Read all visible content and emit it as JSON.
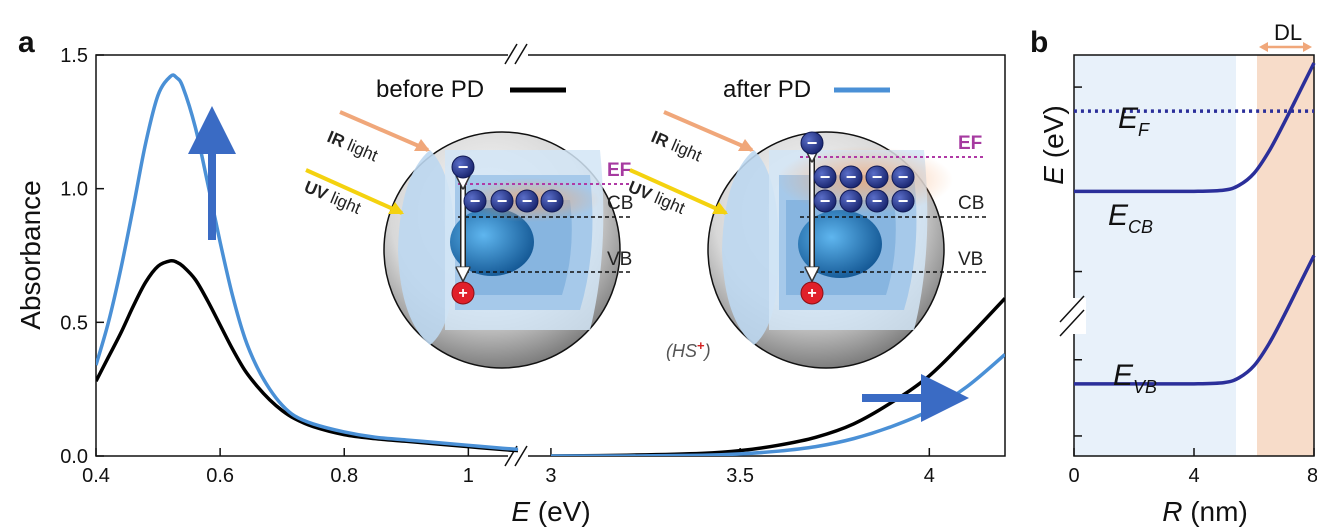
{
  "chart_data": [
    {
      "panel": "a",
      "type": "line",
      "xlabel": "E (eV)",
      "ylabel": "Absorbance",
      "x_segments": [
        [
          0.4,
          1.08
        ],
        [
          3.0,
          4.2
        ]
      ],
      "x_break": true,
      "xticks": [
        0.4,
        0.6,
        0.8,
        1,
        3,
        3.5,
        4
      ],
      "xtick_labels": [
        "0.4",
        "0.6",
        "0.8",
        "1",
        "3",
        "3.5",
        "4"
      ],
      "ylim": [
        0,
        1.5
      ],
      "yticks": [
        0.0,
        0.5,
        1.0,
        1.5
      ],
      "ytick_labels": [
        "0.0",
        "0.5",
        "1.0",
        "1.5"
      ],
      "series": [
        {
          "name": "before PD",
          "color": "#000000",
          "ir": {
            "x": [
              0.4,
              0.42,
              0.44,
              0.46,
              0.48,
              0.5,
              0.52,
              0.53,
              0.54,
              0.56,
              0.58,
              0.6,
              0.62,
              0.64,
              0.66,
              0.68,
              0.7,
              0.72,
              0.75,
              0.8,
              0.85,
              0.9,
              0.95,
              1.0,
              1.05,
              1.08
            ],
            "y": [
              0.28,
              0.37,
              0.46,
              0.56,
              0.65,
              0.71,
              0.73,
              0.725,
              0.71,
              0.66,
              0.58,
              0.49,
              0.4,
              0.32,
              0.26,
              0.21,
              0.17,
              0.14,
              0.11,
              0.08,
              0.065,
              0.055,
              0.045,
              0.035,
              0.025,
              0.02
            ]
          },
          "uv": {
            "x": [
              3.0,
              3.2,
              3.4,
              3.5,
              3.6,
              3.7,
              3.8,
              3.9,
              4.0,
              4.1,
              4.2
            ],
            "y": [
              0.0,
              0.003,
              0.01,
              0.02,
              0.04,
              0.07,
              0.12,
              0.2,
              0.3,
              0.44,
              0.59
            ]
          }
        },
        {
          "name": "after PD",
          "color": "#4a90d6",
          "ir": {
            "x": [
              0.4,
              0.42,
              0.44,
              0.46,
              0.48,
              0.5,
              0.52,
              0.53,
              0.54,
              0.56,
              0.58,
              0.6,
              0.62,
              0.64,
              0.66,
              0.68,
              0.7,
              0.72,
              0.75,
              0.8,
              0.85,
              0.9,
              0.95,
              1.0,
              1.05,
              1.08
            ],
            "y": [
              0.34,
              0.5,
              0.7,
              0.93,
              1.17,
              1.35,
              1.42,
              1.415,
              1.38,
              1.23,
              1.02,
              0.8,
              0.6,
              0.44,
              0.33,
              0.25,
              0.19,
              0.15,
              0.12,
              0.09,
              0.07,
              0.06,
              0.05,
              0.04,
              0.03,
              0.025
            ]
          },
          "uv": {
            "x": [
              3.0,
              3.2,
              3.4,
              3.5,
              3.6,
              3.7,
              3.8,
              3.9,
              4.0,
              4.1,
              4.2
            ],
            "y": [
              0.0,
              0.0,
              0.003,
              0.008,
              0.018,
              0.035,
              0.065,
              0.11,
              0.17,
              0.26,
              0.38
            ]
          }
        }
      ],
      "legend": [
        "before PD",
        "after PD"
      ],
      "legend_placement": "top-center"
    },
    {
      "panel": "b",
      "type": "line",
      "xlabel": "R (nm)",
      "ylabel": "E (eV)",
      "xlim": [
        0,
        8
      ],
      "xticks": [
        0,
        4,
        8
      ],
      "xtick_labels": [
        "0",
        "4",
        "8"
      ],
      "y_break": true,
      "regions": [
        {
          "x": [
            0,
            5.4
          ],
          "color": "#e8f1fa"
        },
        {
          "x": [
            6.1,
            8
          ],
          "color": "#f7dcc9"
        }
      ],
      "dl_label": "DL",
      "dl_range": [
        6.1,
        8
      ],
      "ylim": [
        0,
        10
      ],
      "series": [
        {
          "name": "E_CB",
          "color": "#2b2f9a",
          "x": [
            0,
            2,
            4,
            5,
            5.5,
            6,
            6.5,
            7,
            7.5,
            8
          ],
          "y": [
            6.6,
            6.6,
            6.6,
            6.63,
            6.75,
            7.05,
            7.6,
            8.3,
            9.05,
            9.8
          ]
        },
        {
          "name": "E_VB",
          "color": "#2b2f9a",
          "x": [
            0,
            2,
            4,
            5,
            5.5,
            6,
            6.5,
            7,
            7.5,
            8
          ],
          "y": [
            1.8,
            1.8,
            1.8,
            1.83,
            1.95,
            2.25,
            2.8,
            3.5,
            4.25,
            5.0
          ]
        },
        {
          "name": "E_F",
          "color": "#2b2f9a",
          "style": "dotted",
          "x": [
            0,
            8
          ],
          "y": [
            8.6,
            8.6
          ]
        }
      ]
    }
  ],
  "labels": {
    "panel_a": "a",
    "panel_b": "b",
    "legend_before": "before PD",
    "legend_after": "after PD",
    "ir_light": "IR light",
    "uv_light": "UV light",
    "ef": "EF",
    "cb": "CB",
    "vb": "VB",
    "hs": "(HS⁺)",
    "electron": "−",
    "hole": "+",
    "ef_level": "E",
    "ef_sub": "F",
    "ecb_level": "E",
    "ecb_sub": "CB",
    "evb_level": "E",
    "evb_sub": "VB",
    "b_ylabel": "E (eV)",
    "b_xlabel": "R (nm)",
    "dl": "DL"
  },
  "colors": {
    "before": "#000000",
    "after": "#4a90d6",
    "arrow": "#3a6bc4",
    "ef_dotted": "#b03aa5",
    "band_curve": "#2b2f9a",
    "ir_arrow": "#f0a77a",
    "uv_arrow": "#f4d20f"
  }
}
